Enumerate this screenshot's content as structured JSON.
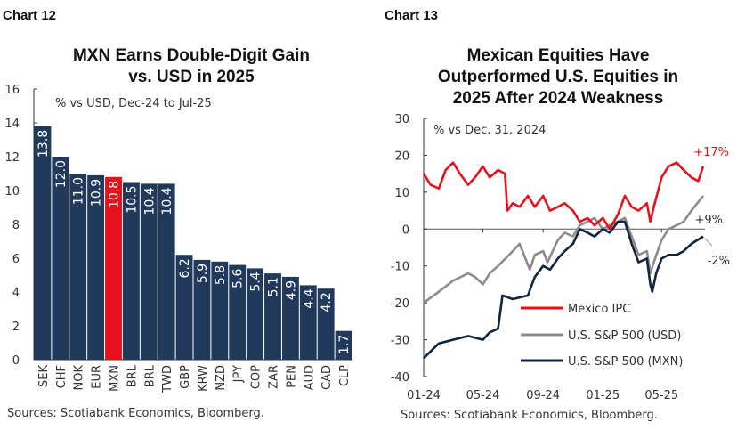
{
  "chart_data": [
    {
      "type": "bar",
      "label": "Chart 12",
      "title": [
        "MXN Earns Double-Digit Gain",
        "vs. USD in 2025"
      ],
      "subtitle": "% vs USD, Dec-24 to Jul-25",
      "categories": [
        "SEK",
        "CHF",
        "NOK",
        "EUR",
        "MXN",
        "BRL",
        "BRL",
        "TWD",
        "GBP",
        "KRW",
        "NZD",
        "JPY",
        "COP",
        "ZAR",
        "PEN",
        "AUD",
        "CAD",
        "CLP"
      ],
      "values": [
        13.8,
        12.0,
        11.0,
        10.9,
        10.8,
        10.5,
        10.4,
        10.4,
        6.2,
        5.9,
        5.8,
        5.6,
        5.4,
        5.1,
        4.9,
        4.4,
        4.2,
        1.7
      ],
      "value_labels": [
        "13.8",
        "12.0",
        "11.0",
        "10.9",
        "10.8",
        "10.5",
        "10.4",
        "10.4",
        "6.2",
        "5.9",
        "5.8",
        "5.6",
        "5.4",
        "5.1",
        "4.9",
        "4.4",
        "4.2",
        "1.7"
      ],
      "highlight": "MXN",
      "colors": {
        "bar": "#213a5b",
        "highlight": "#e8101a"
      },
      "ylim": [
        0,
        16
      ],
      "yticks": [
        "0",
        "2",
        "4",
        "6",
        "8",
        "10",
        "12",
        "14",
        "16"
      ],
      "source": "Sources: Scotiabank Economics, Bloomberg."
    },
    {
      "type": "line",
      "label": "Chart 13",
      "title": [
        "Mexican Equities Have",
        "Outperformed U.S. Equities in",
        "2025 After 2024 Weakness"
      ],
      "subtitle": "% vs Dec. 31, 2024",
      "ylim": [
        -40,
        30
      ],
      "yticks": [
        "-40",
        "-30",
        "-20",
        "-10",
        "0",
        "10",
        "20",
        "30"
      ],
      "xticks": [
        "01-24",
        "05-24",
        "09-24",
        "01-25",
        "05-25"
      ],
      "xtick_dates": [
        "2024-01-01",
        "2024-05-01",
        "2024-09-01",
        "2025-01-01",
        "2025-05-01"
      ],
      "xlim": [
        "2024-01-01",
        "2025-07-25"
      ],
      "series": [
        {
          "name": "Mexico IPC",
          "color": "#e8101a",
          "end_label": "+17%",
          "x": [
            "2024-01-01",
            "2024-01-15",
            "2024-02-01",
            "2024-02-15",
            "2024-03-01",
            "2024-03-15",
            "2024-04-01",
            "2024-04-15",
            "2024-05-01",
            "2024-05-15",
            "2024-06-01",
            "2024-06-15",
            "2024-06-20",
            "2024-07-01",
            "2024-07-15",
            "2024-08-01",
            "2024-08-15",
            "2024-09-01",
            "2024-09-15",
            "2024-10-01",
            "2024-10-15",
            "2024-11-01",
            "2024-11-15",
            "2024-12-01",
            "2024-12-15",
            "2025-01-01",
            "2025-01-15",
            "2025-02-01",
            "2025-02-15",
            "2025-03-01",
            "2025-03-15",
            "2025-04-01",
            "2025-04-08",
            "2025-04-15",
            "2025-05-01",
            "2025-05-15",
            "2025-06-01",
            "2025-06-15",
            "2025-07-01",
            "2025-07-15",
            "2025-07-25"
          ],
          "y": [
            15,
            12,
            11,
            16,
            18,
            15,
            12,
            14,
            17,
            14,
            16,
            15,
            5,
            7,
            6,
            9,
            6,
            9,
            5,
            6,
            7,
            5,
            2,
            3,
            1,
            3,
            0,
            4,
            9,
            6,
            5,
            7,
            2,
            6,
            14,
            17,
            18,
            16,
            14,
            13,
            17
          ]
        },
        {
          "name": "U.S. S&P 500 (USD)",
          "color": "#8c8c8c",
          "end_label": "+9%",
          "x": [
            "2024-01-01",
            "2024-02-01",
            "2024-03-01",
            "2024-04-01",
            "2024-04-15",
            "2024-05-01",
            "2024-05-15",
            "2024-06-01",
            "2024-07-01",
            "2024-07-15",
            "2024-08-05",
            "2024-08-15",
            "2024-09-01",
            "2024-09-10",
            "2024-10-01",
            "2024-10-15",
            "2024-11-01",
            "2024-11-15",
            "2024-12-01",
            "2024-12-15",
            "2025-01-01",
            "2025-01-15",
            "2025-02-01",
            "2025-02-15",
            "2025-03-01",
            "2025-03-15",
            "2025-04-01",
            "2025-04-08",
            "2025-04-15",
            "2025-05-01",
            "2025-05-15",
            "2025-06-01",
            "2025-06-15",
            "2025-07-01",
            "2025-07-25"
          ],
          "y": [
            -20,
            -17,
            -14,
            -12,
            -13,
            -15,
            -12,
            -10,
            -6,
            -4,
            -11,
            -7,
            -6,
            -9,
            -3,
            -1,
            -2,
            1,
            2,
            3,
            0,
            1,
            2,
            3,
            -2,
            -7,
            -6,
            -12,
            -9,
            -3,
            0,
            1,
            2,
            5,
            9
          ]
        },
        {
          "name": "U.S. S&P 500 (MXN)",
          "color": "#0f2540",
          "end_label": "-2%",
          "x": [
            "2024-01-01",
            "2024-02-01",
            "2024-03-01",
            "2024-04-01",
            "2024-05-01",
            "2024-05-15",
            "2024-06-01",
            "2024-06-10",
            "2024-07-01",
            "2024-08-01",
            "2024-08-15",
            "2024-09-01",
            "2024-09-15",
            "2024-10-01",
            "2024-10-15",
            "2024-11-01",
            "2024-11-15",
            "2024-12-01",
            "2024-12-15",
            "2025-01-01",
            "2025-01-15",
            "2025-02-01",
            "2025-02-15",
            "2025-03-01",
            "2025-03-15",
            "2025-04-01",
            "2025-04-08",
            "2025-04-12",
            "2025-04-20",
            "2025-05-01",
            "2025-05-15",
            "2025-06-01",
            "2025-06-15",
            "2025-07-01",
            "2025-07-25"
          ],
          "y": [
            -35,
            -31,
            -30,
            -29,
            -30,
            -28,
            -27,
            -18,
            -19,
            -18,
            -13,
            -10,
            -11,
            -8,
            -6,
            -4,
            0,
            -1,
            -2,
            0,
            -1,
            2,
            2,
            -4,
            -9,
            -8,
            -15,
            -17,
            -12,
            -8,
            -7,
            -7,
            -6,
            -4,
            -2
          ]
        }
      ],
      "legend_placement": "bottom-right",
      "source": "Sources: Scotiabank Economics, Bloomberg."
    }
  ]
}
